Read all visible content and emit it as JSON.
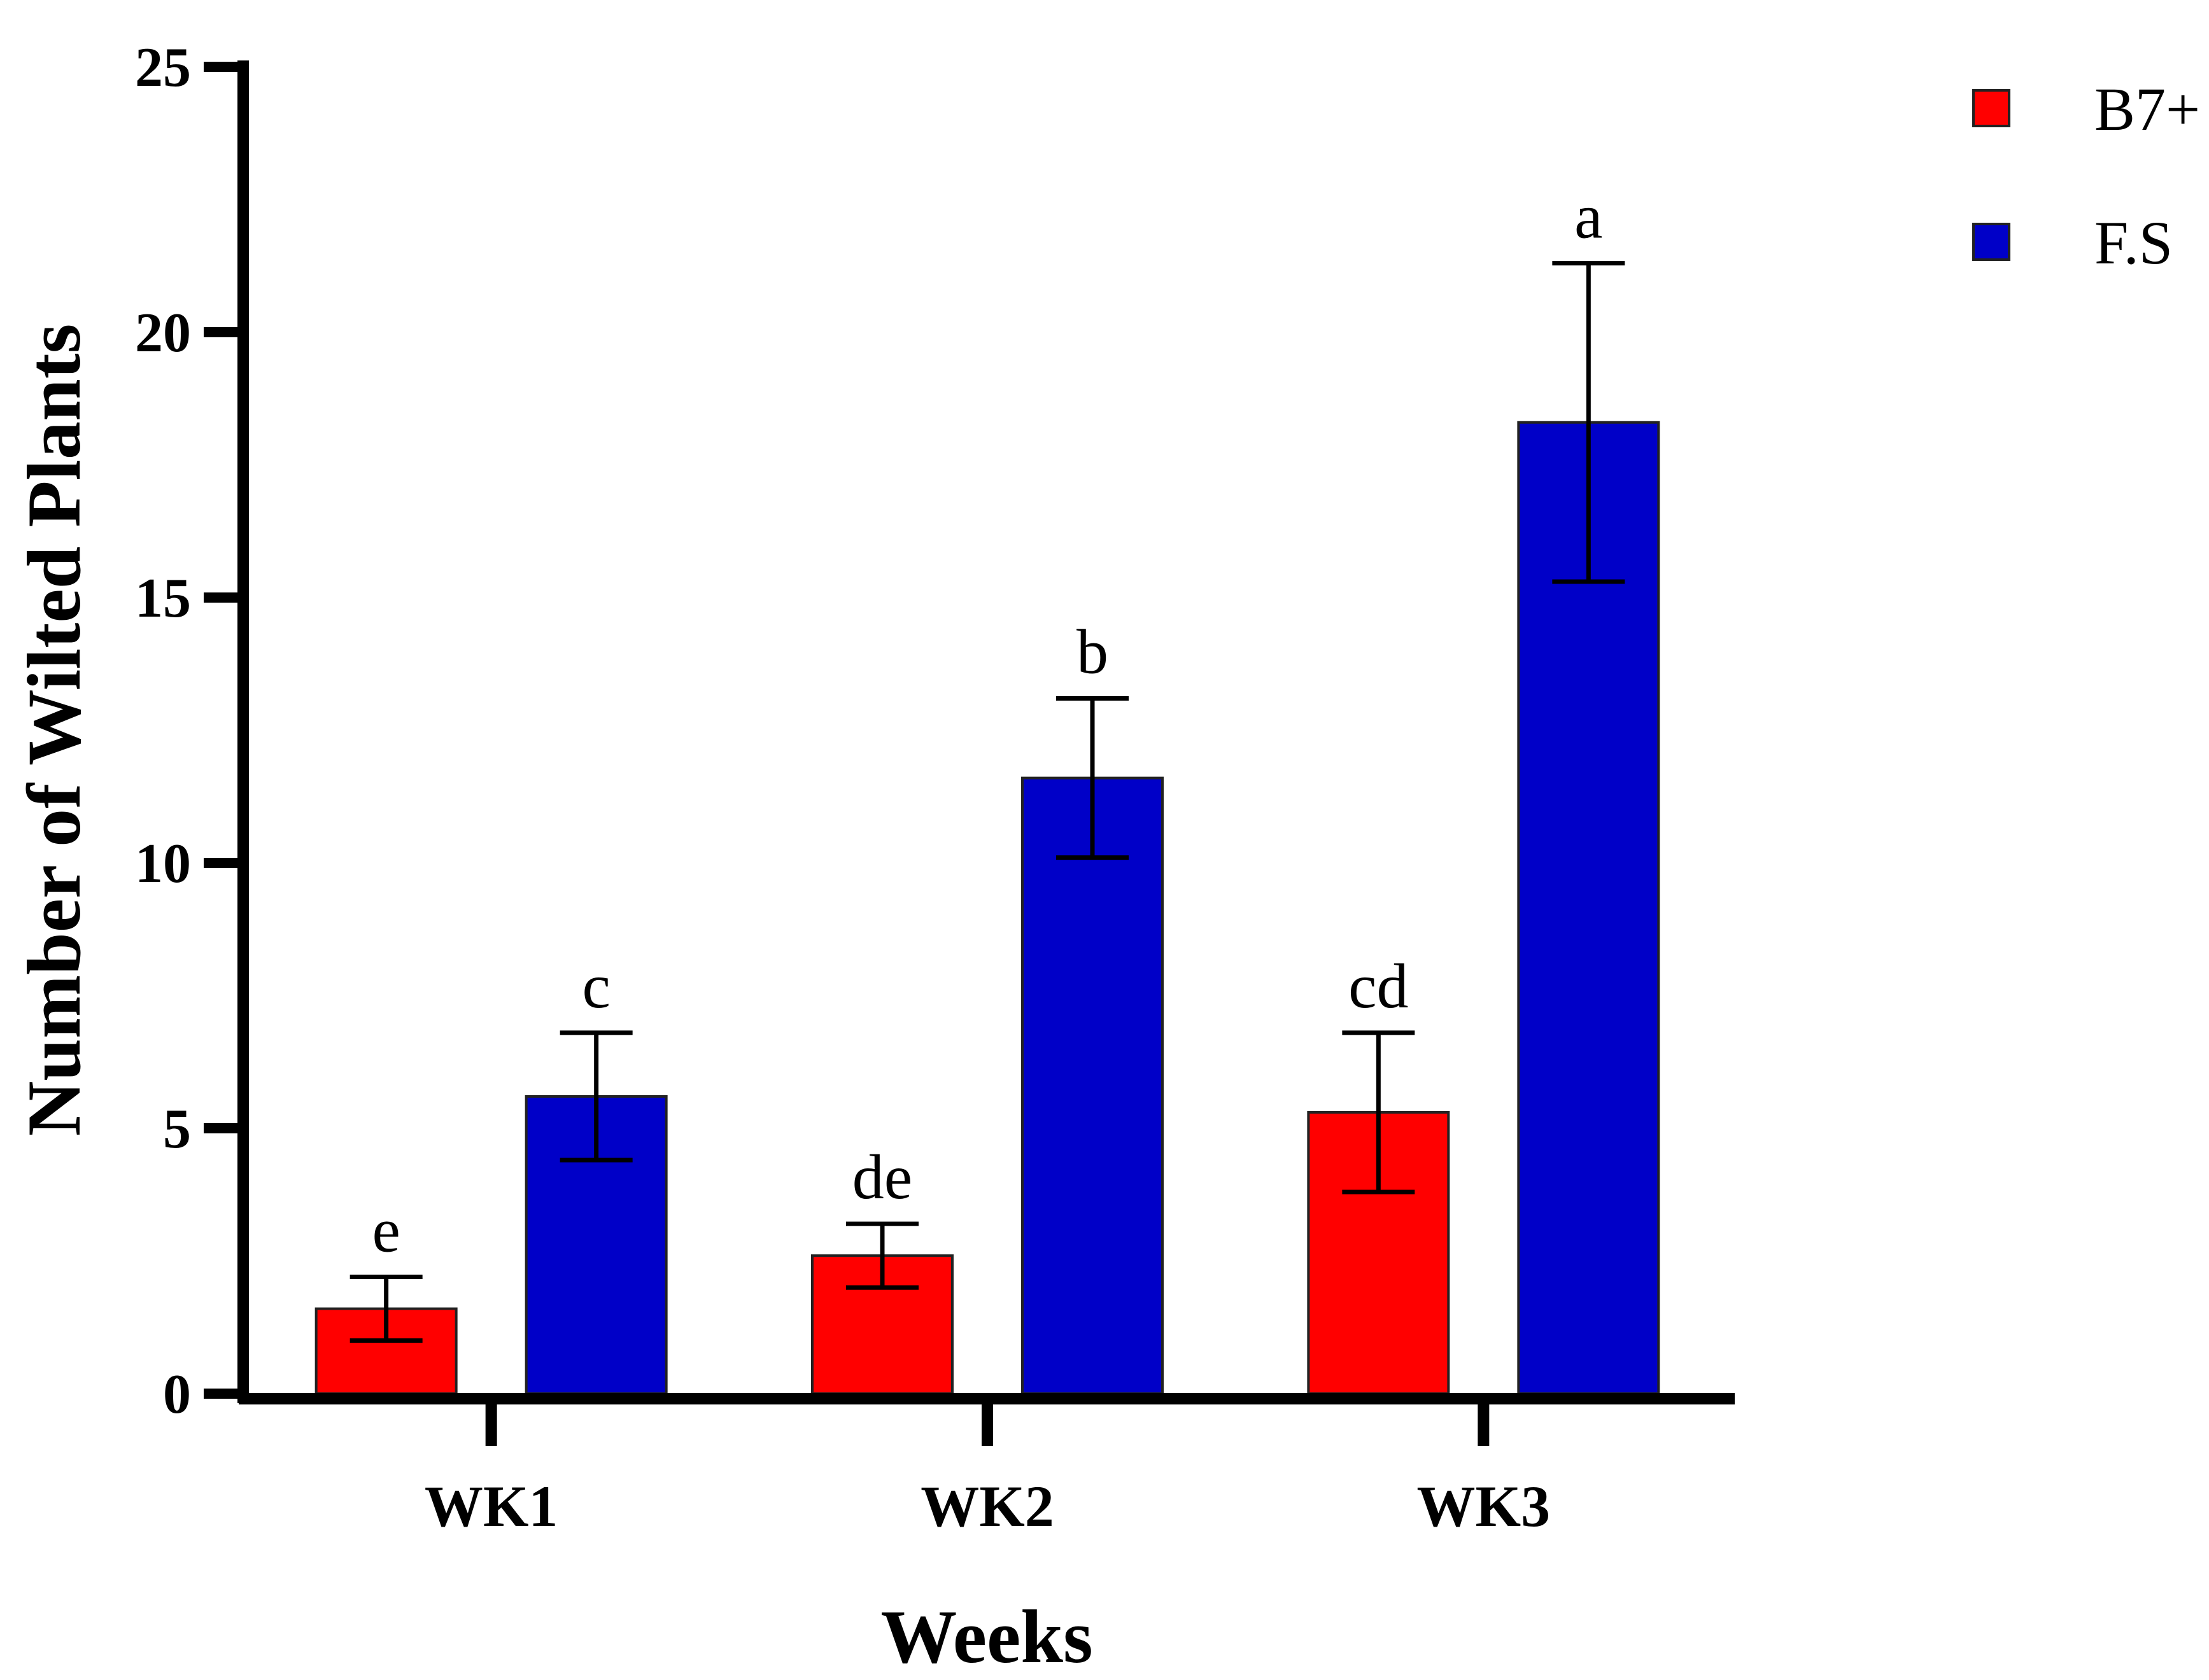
{
  "chart_data": {
    "type": "bar",
    "title": "",
    "xlabel": "Weeks",
    "ylabel": "Number of Wilted Plants",
    "ylim": [
      0,
      25
    ],
    "yticks": [
      0,
      5,
      10,
      15,
      20,
      25
    ],
    "ytick_labels": [
      "0",
      "5",
      "10",
      "15",
      "20",
      "25"
    ],
    "categories": [
      "WK1",
      "WK2",
      "WK3"
    ],
    "series": [
      {
        "name": "B7+",
        "color": "#ff0000",
        "values": [
          1.6,
          2.6,
          5.3
        ],
        "errors": [
          0.6,
          0.6,
          1.5
        ],
        "significance": [
          "e",
          "de",
          "cd"
        ]
      },
      {
        "name": "F.S",
        "color": "#0000c8",
        "values": [
          5.6,
          11.6,
          18.3
        ],
        "errors": [
          1.2,
          1.5,
          3.0
        ],
        "significance": [
          "c",
          "b",
          "a"
        ]
      }
    ],
    "legend_position": "top-right",
    "grid": false
  }
}
